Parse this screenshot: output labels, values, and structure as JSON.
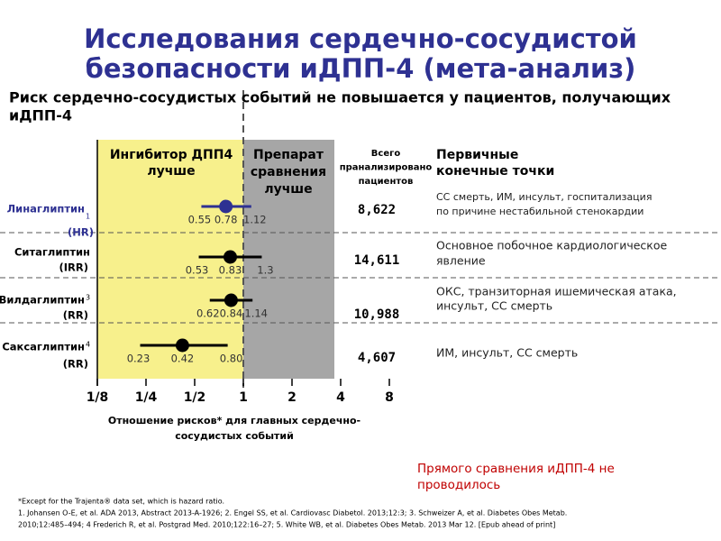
{
  "title": [
    "Исследования сердечно-сосудистой",
    "безопасности иДПП-4 (мета-анализ)"
  ],
  "subtitle": [
    "Риск сердечно-сосудистых событий не повышается у пациентов, получающих",
    "иДПП-4"
  ],
  "left_header": [
    "Ингибитор ДПП4",
    "лучше"
  ],
  "right_header": [
    "Препарат",
    "сравнения",
    "лучше"
  ],
  "patients_header": [
    "Всего",
    "пранализировано",
    "пациентов"
  ],
  "endpoints_header": [
    "Первичные",
    "конечные точки"
  ],
  "rows": [
    {
      "sup": "1",
      "measure": "(HR)",
      "patients": "8,622",
      "endpoint": [
        "СС смерть, ИМ, инсульт, госпитализация",
        "по причине нестабильной стенокардии"
      ]
    },
    {
      "measure": "(IRR)",
      "patients": "14,611",
      "endpoint": [
        "Основное побочное кардиологическое",
        "явление"
      ]
    },
    {
      "sup": "3",
      "measure": "(RR)",
      "patients": "10,988",
      "endpoint": [
        "ОКС, транзиторная ишемическая атака,",
        "инсульт, СС смерть"
      ]
    },
    {
      "sup": "4",
      "measure": "(RR)",
      "patients": "4,607",
      "endpoint": [
        "ИМ, инсульт, СС смерть"
      ]
    }
  ],
  "chart_data": {
    "type": "forest",
    "categories": [
      "Линаглиптин",
      "Ситаглиптин",
      "Вилдаглиптин",
      "Саксаглиптин"
    ],
    "colors": [
      "#2e3192",
      "#000000",
      "#000000",
      "#000000"
    ],
    "values": [
      0.78,
      0.83,
      0.84,
      0.42
    ],
    "ci_low": [
      0.55,
      0.53,
      0.62,
      0.23
    ],
    "ci_high": [
      1.12,
      1.3,
      1.14,
      0.8
    ],
    "ci_high_labels": [
      "1.12",
      "1.3",
      "1.14",
      "0.80"
    ],
    "log_scale": true,
    "xlim": [
      0.125,
      8
    ],
    "xticks": [
      {
        "value": 0.125,
        "label": "1/8"
      },
      {
        "value": 0.25,
        "label": "1/4"
      },
      {
        "value": 0.5,
        "label": "1/2"
      },
      1,
      2,
      4,
      8
    ],
    "x_label": [
      "Отношение рисков* для главных сердечно-",
      "сосудистых событий"
    ]
  },
  "note": [
    "Прямого сравнения иДПП-4 не",
    "проводилось"
  ],
  "footnotes": [
    "*Except for the Trajenta® data set, which is hazard ratio.",
    "1. Johansen O-E, et al. ADA 2013, Abstract 2013-A-1926; 2. Engel SS, et al. Cardiovasc Diabetol. 2013;12:3; 3. Schweizer A, et al. Diabetes Obes Metab.",
    "2010;12:485–494; 4 Frederich R, et al. Postgrad Med. 2010;122:16–27; 5. White WB, et al. Diabetes Obes Metab. 2013 Mar 12. [Epub ahead of print]"
  ]
}
